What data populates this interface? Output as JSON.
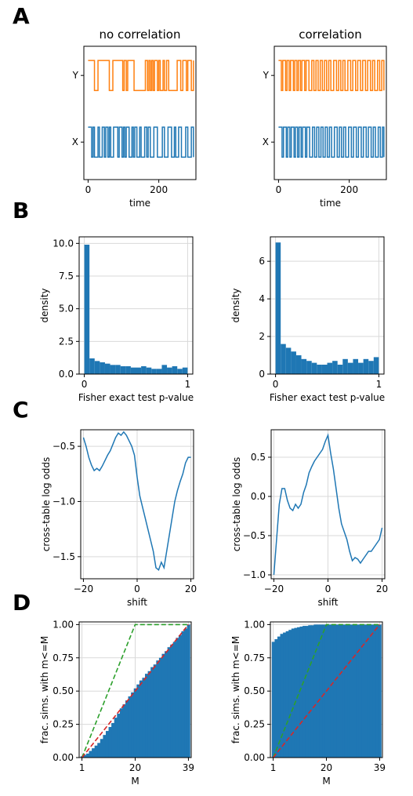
{
  "panel_letters": [
    "A",
    "B",
    "C",
    "D"
  ],
  "colors": {
    "blue": "#1f77b4",
    "orange": "#ff7f0e",
    "green": "#2ca02c",
    "red": "#d62728",
    "grid": "#d9d9d9"
  },
  "chart_data": [
    {
      "id": "A_left",
      "type": "line",
      "title": "no correlation",
      "xlabel": "time",
      "xticks": [
        "0",
        "200"
      ],
      "yticks": [
        "X",
        "Y"
      ],
      "xlim": [
        -12,
        305
      ],
      "grid": false,
      "series": [
        {
          "label": "Y",
          "color": "#ff7f0e",
          "high": 1.08,
          "low": 0.72,
          "transitions": [
            0,
            18,
            28,
            60,
            70,
            98,
            102,
            108,
            112,
            130,
            162,
            168,
            172,
            176,
            180,
            184,
            188,
            196,
            200,
            204,
            212,
            216,
            222,
            228,
            252,
            262,
            268,
            278,
            282,
            292,
            298
          ]
        },
        {
          "label": "X",
          "color": "#1f77b4",
          "high": 0.28,
          "low": -0.08,
          "transitions": [
            0,
            10,
            14,
            18,
            28,
            32,
            40,
            46,
            50,
            56,
            60,
            64,
            72,
            84,
            88,
            96,
            100,
            104,
            108,
            116,
            124,
            128,
            132,
            138,
            146,
            150,
            160,
            166,
            170,
            176,
            186,
            196,
            210,
            216,
            226,
            236,
            244,
            248,
            256,
            264,
            276,
            282,
            292,
            298
          ]
        }
      ]
    },
    {
      "id": "A_right",
      "type": "line",
      "title": "correlation",
      "xlabel": "time",
      "xticks": [
        "0",
        "200"
      ],
      "yticks": [
        "X",
        "Y"
      ],
      "xlim": [
        -12,
        305
      ],
      "grid": false,
      "series": [
        {
          "label": "Y",
          "color": "#ff7f0e",
          "high": 1.08,
          "low": 0.72,
          "transitions": [
            0,
            8,
            12,
            20,
            24,
            30,
            34,
            42,
            46,
            52,
            56,
            62,
            66,
            74,
            78,
            86,
            94,
            100,
            106,
            112,
            118,
            124,
            130,
            136,
            142,
            148,
            156,
            164,
            170,
            176,
            182,
            188,
            196,
            204,
            210,
            218,
            224,
            232,
            238,
            246,
            252,
            260,
            266,
            272,
            280,
            286,
            292,
            298
          ]
        },
        {
          "label": "X",
          "color": "#1f77b4",
          "high": 0.28,
          "low": -0.08,
          "transitions": [
            0,
            10,
            14,
            22,
            26,
            32,
            36,
            44,
            48,
            54,
            58,
            64,
            68,
            76,
            80,
            88,
            96,
            102,
            108,
            114,
            120,
            126,
            132,
            138,
            144,
            150,
            158,
            166,
            172,
            178,
            184,
            190,
            198,
            206,
            212,
            220,
            226,
            234,
            240,
            248,
            254,
            262,
            268,
            274,
            282,
            288,
            294,
            298
          ]
        }
      ]
    },
    {
      "id": "B_left",
      "type": "bar",
      "xlabel": "Fisher exact test p-value",
      "ylabel": "density",
      "xlim": [
        -0.05,
        1.05
      ],
      "ylim": [
        0,
        10.5
      ],
      "xticks": [
        0,
        1
      ],
      "xticklabels": [
        "0",
        "1"
      ],
      "yticks": [
        0,
        2.5,
        5,
        7.5,
        10
      ],
      "yticklabels": [
        "0.0",
        "2.5",
        "5.0",
        "7.5",
        "10.0"
      ],
      "bin_width": 0.05,
      "color": "#1f77b4",
      "grid": true,
      "values": [
        9.9,
        1.2,
        1.0,
        0.9,
        0.8,
        0.7,
        0.7,
        0.6,
        0.6,
        0.5,
        0.5,
        0.6,
        0.5,
        0.4,
        0.4,
        0.7,
        0.5,
        0.6,
        0.4,
        0.5
      ]
    },
    {
      "id": "B_right",
      "type": "bar",
      "xlabel": "Fisher exact test p-value",
      "ylabel": "density",
      "xlim": [
        -0.05,
        1.05
      ],
      "ylim": [
        0,
        7.3
      ],
      "xticks": [
        0,
        1
      ],
      "xticklabels": [
        "0",
        "1"
      ],
      "yticks": [
        0,
        2,
        4,
        6
      ],
      "yticklabels": [
        "0",
        "2",
        "4",
        "6"
      ],
      "bin_width": 0.05,
      "color": "#1f77b4",
      "grid": true,
      "values": [
        7.0,
        1.6,
        1.4,
        1.2,
        1.0,
        0.8,
        0.7,
        0.6,
        0.5,
        0.5,
        0.6,
        0.7,
        0.5,
        0.8,
        0.6,
        0.8,
        0.6,
        0.8,
        0.7,
        0.9
      ]
    },
    {
      "id": "C_left",
      "type": "line",
      "xlabel": "shift",
      "ylabel": "cross-table log odds",
      "xlim": [
        -21,
        21
      ],
      "ylim": [
        -1.7,
        -0.35
      ],
      "xticks": [
        -20,
        0,
        20
      ],
      "xticklabels": [
        "−20",
        "0",
        "20"
      ],
      "yticks": [
        -1.5,
        -1.0,
        -0.5
      ],
      "yticklabels": [
        "−1.5",
        "−1.0",
        "−0.5"
      ],
      "color": "#1f77b4",
      "grid": true,
      "x": [
        -20,
        -19,
        -18,
        -17,
        -16,
        -15,
        -14,
        -13,
        -12,
        -11,
        -10,
        -9,
        -8,
        -7,
        -6,
        -5,
        -4,
        -3,
        -2,
        -1,
        0,
        1,
        2,
        3,
        4,
        5,
        6,
        7,
        8,
        9,
        10,
        11,
        12,
        13,
        14,
        15,
        16,
        17,
        18,
        19,
        20
      ],
      "y": [
        -0.42,
        -0.5,
        -0.6,
        -0.67,
        -0.72,
        -0.7,
        -0.72,
        -0.68,
        -0.63,
        -0.58,
        -0.54,
        -0.48,
        -0.42,
        -0.38,
        -0.4,
        -0.37,
        -0.4,
        -0.45,
        -0.5,
        -0.58,
        -0.78,
        -0.95,
        -1.05,
        -1.15,
        -1.25,
        -1.35,
        -1.45,
        -1.6,
        -1.62,
        -1.55,
        -1.6,
        -1.45,
        -1.3,
        -1.15,
        -1.0,
        -0.9,
        -0.82,
        -0.75,
        -0.65,
        -0.6,
        -0.6
      ]
    },
    {
      "id": "C_right",
      "type": "line",
      "xlabel": "shift",
      "ylabel": "cross-table log odds",
      "xlim": [
        -21,
        21
      ],
      "ylim": [
        -1.05,
        0.85
      ],
      "xticks": [
        -20,
        0,
        20
      ],
      "xticklabels": [
        "−20",
        "0",
        "20"
      ],
      "yticks": [
        -1.0,
        -0.5,
        0.0,
        0.5
      ],
      "yticklabels": [
        "−1.0",
        "−0.5",
        "0.0",
        "0.5"
      ],
      "color": "#1f77b4",
      "grid": true,
      "x": [
        -20,
        -19,
        -18,
        -17,
        -16,
        -15,
        -14,
        -13,
        -12,
        -11,
        -10,
        -9,
        -8,
        -7,
        -6,
        -5,
        -4,
        -3,
        -2,
        -1,
        0,
        1,
        2,
        3,
        4,
        5,
        6,
        7,
        8,
        9,
        10,
        11,
        12,
        13,
        14,
        15,
        16,
        17,
        18,
        19,
        20
      ],
      "y": [
        -1.0,
        -0.55,
        -0.1,
        0.1,
        0.1,
        -0.05,
        -0.15,
        -0.18,
        -0.1,
        -0.15,
        -0.1,
        0.05,
        0.15,
        0.3,
        0.38,
        0.45,
        0.5,
        0.55,
        0.6,
        0.7,
        0.78,
        0.55,
        0.35,
        0.1,
        -0.15,
        -0.35,
        -0.45,
        -0.55,
        -0.7,
        -0.82,
        -0.78,
        -0.8,
        -0.85,
        -0.8,
        -0.75,
        -0.7,
        -0.7,
        -0.65,
        -0.6,
        -0.55,
        -0.4
      ]
    },
    {
      "id": "D_left",
      "type": "area",
      "xlabel": "M",
      "ylabel": "frac. sims. with m<=M",
      "xlim": [
        0,
        40
      ],
      "ylim": [
        0,
        1.02
      ],
      "xticks": [
        1,
        20,
        39
      ],
      "xticklabels": [
        "1",
        "20",
        "39"
      ],
      "yticks": [
        0,
        0.25,
        0.5,
        0.75,
        1.0
      ],
      "yticklabels": [
        "0.00",
        "0.25",
        "0.50",
        "0.75",
        "1.00"
      ],
      "color": "#1f77b4",
      "grid": true,
      "x": [
        1,
        2,
        3,
        4,
        5,
        6,
        7,
        8,
        9,
        10,
        11,
        12,
        13,
        14,
        15,
        16,
        17,
        18,
        19,
        20,
        21,
        22,
        23,
        24,
        25,
        26,
        27,
        28,
        29,
        30,
        31,
        32,
        33,
        34,
        35,
        36,
        37,
        38,
        39
      ],
      "values": [
        0.01,
        0.02,
        0.03,
        0.05,
        0.07,
        0.09,
        0.11,
        0.14,
        0.17,
        0.2,
        0.23,
        0.26,
        0.3,
        0.33,
        0.37,
        0.4,
        0.43,
        0.46,
        0.49,
        0.52,
        0.55,
        0.58,
        0.6,
        0.63,
        0.65,
        0.68,
        0.7,
        0.73,
        0.75,
        0.78,
        0.8,
        0.83,
        0.85,
        0.87,
        0.9,
        0.92,
        0.95,
        0.97,
        1.0
      ],
      "lines": [
        {
          "color": "#2ca02c",
          "dashed": true,
          "x": [
            1,
            20,
            39
          ],
          "y": [
            0.0,
            1.0,
            1.0
          ]
        },
        {
          "color": "#d62728",
          "dashed": true,
          "x": [
            1,
            39
          ],
          "y": [
            0.0,
            1.0
          ]
        }
      ]
    },
    {
      "id": "D_right",
      "type": "area",
      "xlabel": "M",
      "ylabel": "frac. sims. with m<=M",
      "xlim": [
        0,
        40
      ],
      "ylim": [
        0,
        1.02
      ],
      "xticks": [
        1,
        20,
        39
      ],
      "xticklabels": [
        "1",
        "20",
        "39"
      ],
      "yticks": [
        0,
        0.25,
        0.5,
        0.75,
        1.0
      ],
      "yticklabels": [
        "0.00",
        "0.25",
        "0.50",
        "0.75",
        "1.00"
      ],
      "color": "#1f77b4",
      "grid": true,
      "x": [
        1,
        2,
        3,
        4,
        5,
        6,
        7,
        8,
        9,
        10,
        11,
        12,
        13,
        14,
        15,
        16,
        17,
        18,
        19,
        20,
        21,
        22,
        23,
        24,
        25,
        26,
        27,
        28,
        29,
        30,
        31,
        32,
        33,
        34,
        35,
        36,
        37,
        38,
        39
      ],
      "values": [
        0.87,
        0.89,
        0.91,
        0.93,
        0.94,
        0.95,
        0.96,
        0.97,
        0.975,
        0.98,
        0.985,
        0.99,
        0.99,
        0.995,
        0.995,
        1.0,
        1.0,
        1.0,
        1.0,
        1.0,
        1.0,
        1.0,
        1.0,
        1.0,
        1.0,
        1.0,
        1.0,
        1.0,
        1.0,
        1.0,
        1.0,
        1.0,
        1.0,
        1.0,
        1.0,
        1.0,
        1.0,
        1.0,
        1.0
      ],
      "lines": [
        {
          "color": "#2ca02c",
          "dashed": true,
          "x": [
            1,
            20,
            39
          ],
          "y": [
            0.0,
            1.0,
            1.0
          ]
        },
        {
          "color": "#d62728",
          "dashed": true,
          "x": [
            1,
            39
          ],
          "y": [
            0.0,
            1.0
          ]
        }
      ]
    }
  ]
}
